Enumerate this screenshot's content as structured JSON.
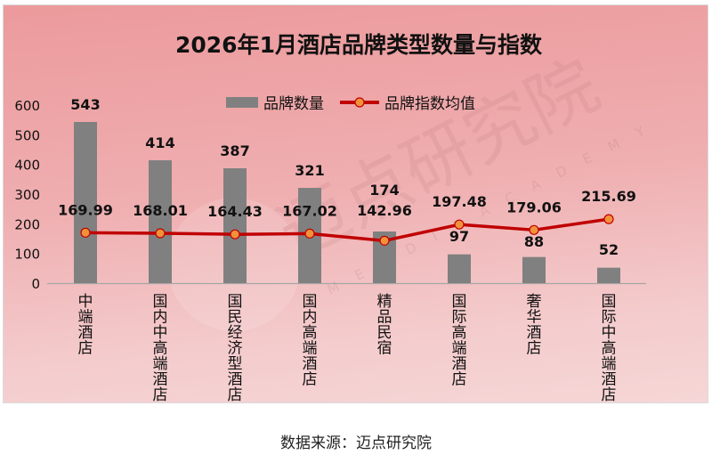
{
  "chart_data": {
    "type": "bar",
    "title": "2026年1月酒店品牌类型数量与指数",
    "categories": [
      "中端酒店",
      "国内中高端酒店",
      "国民经济型酒店",
      "国内高端酒店",
      "精品民宿",
      "国际高端酒店",
      "奢华酒店",
      "国际中高端酒店"
    ],
    "series": [
      {
        "name": "品牌数量",
        "type": "bar",
        "color": "#808080",
        "values": [
          543,
          414,
          387,
          321,
          174,
          97,
          88,
          52
        ]
      },
      {
        "name": "品牌指数均值",
        "type": "line",
        "color": "#c00000",
        "marker_color": "#f0923a",
        "values": [
          169.99,
          168.01,
          164.43,
          167.02,
          142.96,
          197.48,
          179.06,
          215.69
        ]
      }
    ],
    "xlabel": "",
    "ylabel": "",
    "ylim": [
      0,
      600
    ],
    "yticks": [
      0,
      100,
      200,
      300,
      400,
      500,
      600
    ],
    "grid": false,
    "legend_position": "top",
    "watermark": "迈点研究院 MEADIN ACADEMY"
  },
  "footer": {
    "source": "数据来源：迈点研究院"
  }
}
